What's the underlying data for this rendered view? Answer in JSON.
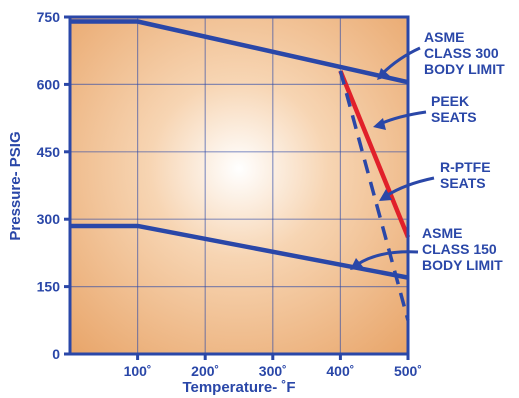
{
  "chart_data": {
    "type": "line",
    "xlabel": "Temperature- ˚F",
    "ylabel": "Pressure- PSIG",
    "xlim": [
      0,
      500
    ],
    "ylim": [
      0,
      750
    ],
    "grid": true,
    "x_ticks": [
      {
        "value": 100,
        "label": "100˚"
      },
      {
        "value": 200,
        "label": "200˚"
      },
      {
        "value": 300,
        "label": "300˚"
      },
      {
        "value": 400,
        "label": "400˚"
      },
      {
        "value": 500,
        "label": "500˚"
      }
    ],
    "y_ticks": [
      {
        "value": 0,
        "label": "0"
      },
      {
        "value": 150,
        "label": "150"
      },
      {
        "value": 300,
        "label": "300"
      },
      {
        "value": 450,
        "label": "450"
      },
      {
        "value": 600,
        "label": "600"
      },
      {
        "value": 750,
        "label": "750"
      }
    ],
    "series": [
      {
        "name": "ASME CLASS 300 BODY LIMIT",
        "label_lines": [
          "ASME",
          "CLASS 300",
          "BODY LIMIT"
        ],
        "style": "solid",
        "color": "#2a47a8",
        "x": [
          0,
          100,
          500
        ],
        "y": [
          740,
          740,
          605
        ]
      },
      {
        "name": "ASME CLASS 150 BODY LIMIT",
        "label_lines": [
          "ASME",
          "CLASS 150",
          "BODY LIMIT"
        ],
        "style": "solid",
        "color": "#2a47a8",
        "x": [
          0,
          100,
          500
        ],
        "y": [
          285,
          285,
          170
        ]
      },
      {
        "name": "PEEK SEATS",
        "label_lines": [
          "PEEK",
          "SEATS"
        ],
        "style": "solid",
        "color": "#e1202a",
        "x": [
          400,
          500
        ],
        "y": [
          630,
          260
        ]
      },
      {
        "name": "R-PTFE SEATS",
        "label_lines": [
          "R-PTFE",
          "SEATS"
        ],
        "style": "dashed",
        "color": "#2a47a8",
        "x": [
          400,
          500
        ],
        "y": [
          630,
          75
        ]
      }
    ],
    "colors": {
      "axis": "#2a47a8",
      "plot_background_outer": "#e8a468",
      "plot_background_inner": "#ffffff"
    }
  }
}
